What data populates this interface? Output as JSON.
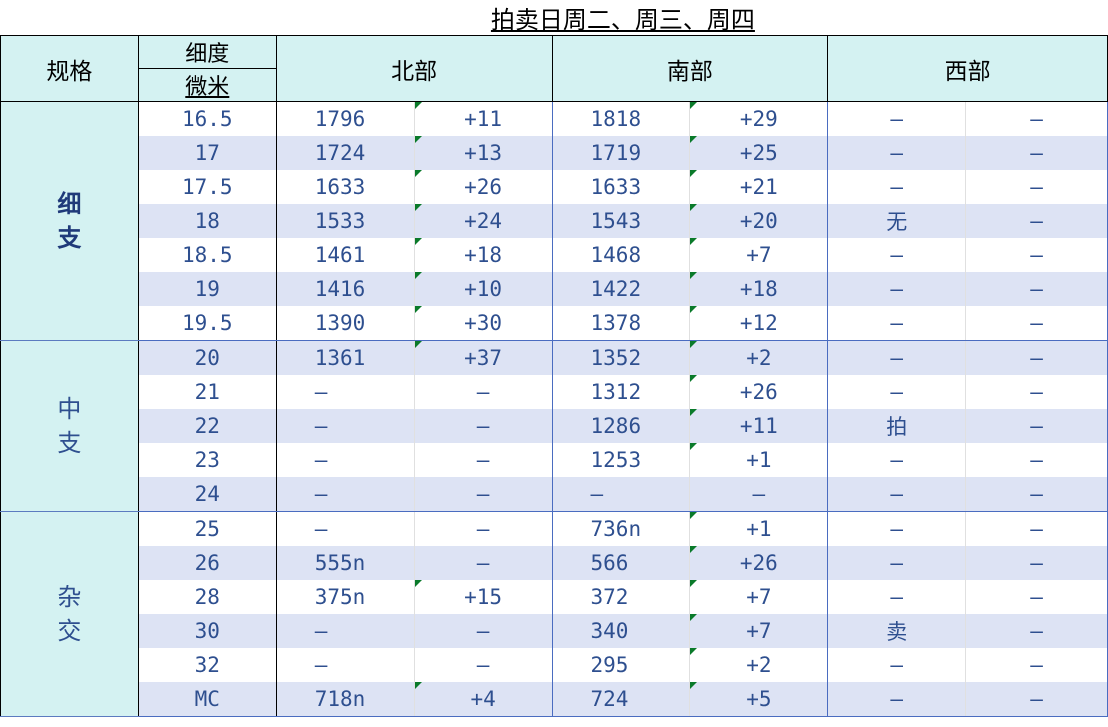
{
  "title": "拍卖日周二、周三、周四",
  "header": {
    "spec": "规格",
    "fineness": "细度",
    "micron": "微米",
    "north": "北部",
    "south": "南部",
    "west": "西部"
  },
  "groups": [
    {
      "label_top": "细",
      "label_bottom": "支"
    },
    {
      "label_top": "中",
      "label_bottom": "支"
    },
    {
      "label_top": "杂",
      "label_bottom": "交"
    }
  ],
  "rows": [
    {
      "spec": "16.5",
      "north_price": "1796",
      "north_delta": "+11",
      "south_price": "1818",
      "south_delta": "+29",
      "west_a": "–",
      "west_b": "–"
    },
    {
      "spec": "17",
      "north_price": "1724",
      "north_delta": "+13",
      "south_price": "1719",
      "south_delta": "+25",
      "west_a": "–",
      "west_b": "–"
    },
    {
      "spec": "17.5",
      "north_price": "1633",
      "north_delta": "+26",
      "south_price": "1633",
      "south_delta": "+21",
      "west_a": "–",
      "west_b": "–"
    },
    {
      "spec": "18",
      "north_price": "1533",
      "north_delta": "+24",
      "south_price": "1543",
      "south_delta": "+20",
      "west_a": "无",
      "west_b": "–"
    },
    {
      "spec": "18.5",
      "north_price": "1461",
      "north_delta": "+18",
      "south_price": "1468",
      "south_delta": "+7",
      "west_a": "–",
      "west_b": "–"
    },
    {
      "spec": "19",
      "north_price": "1416",
      "north_delta": "+10",
      "south_price": "1422",
      "south_delta": "+18",
      "west_a": "–",
      "west_b": "–"
    },
    {
      "spec": "19.5",
      "north_price": "1390",
      "north_delta": "+30",
      "south_price": "1378",
      "south_delta": "+12",
      "west_a": "–",
      "west_b": "–"
    },
    {
      "spec": "20",
      "north_price": "1361",
      "north_delta": "+37",
      "south_price": "1352",
      "south_delta": "+2",
      "west_a": "–",
      "west_b": "–"
    },
    {
      "spec": "21",
      "north_price": "–",
      "north_delta": "–",
      "south_price": "1312",
      "south_delta": "+26",
      "west_a": "–",
      "west_b": "–"
    },
    {
      "spec": "22",
      "north_price": "–",
      "north_delta": "–",
      "south_price": "1286",
      "south_delta": "+11",
      "west_a": "拍",
      "west_b": "–"
    },
    {
      "spec": "23",
      "north_price": "–",
      "north_delta": "–",
      "south_price": "1253",
      "south_delta": "+1",
      "west_a": "–",
      "west_b": "–"
    },
    {
      "spec": "24",
      "north_price": "–",
      "north_delta": "–",
      "south_price": "–",
      "south_delta": "–",
      "west_a": "–",
      "west_b": "–"
    },
    {
      "spec": "25",
      "north_price": "–",
      "north_delta": "–",
      "south_price": "736n",
      "south_delta": "+1",
      "west_a": "–",
      "west_b": "–"
    },
    {
      "spec": "26",
      "north_price": "555n",
      "north_delta": "–",
      "south_price": "566",
      "south_delta": "+26",
      "west_a": "–",
      "west_b": "–"
    },
    {
      "spec": "28",
      "north_price": "375n",
      "north_delta": "+15",
      "south_price": "372",
      "south_delta": "+7",
      "west_a": "–",
      "west_b": "–"
    },
    {
      "spec": "30",
      "north_price": "–",
      "north_delta": "–",
      "south_price": "340",
      "south_delta": "+7",
      "west_a": "卖",
      "west_b": "–"
    },
    {
      "spec": "32",
      "north_price": "–",
      "north_delta": "–",
      "south_price": "295",
      "south_delta": "+2",
      "west_a": "–",
      "west_b": "–"
    },
    {
      "spec": "MC",
      "north_price": "718n",
      "north_delta": "+4",
      "south_price": "724",
      "south_delta": "+5",
      "west_a": "–",
      "west_b": "–"
    }
  ]
}
